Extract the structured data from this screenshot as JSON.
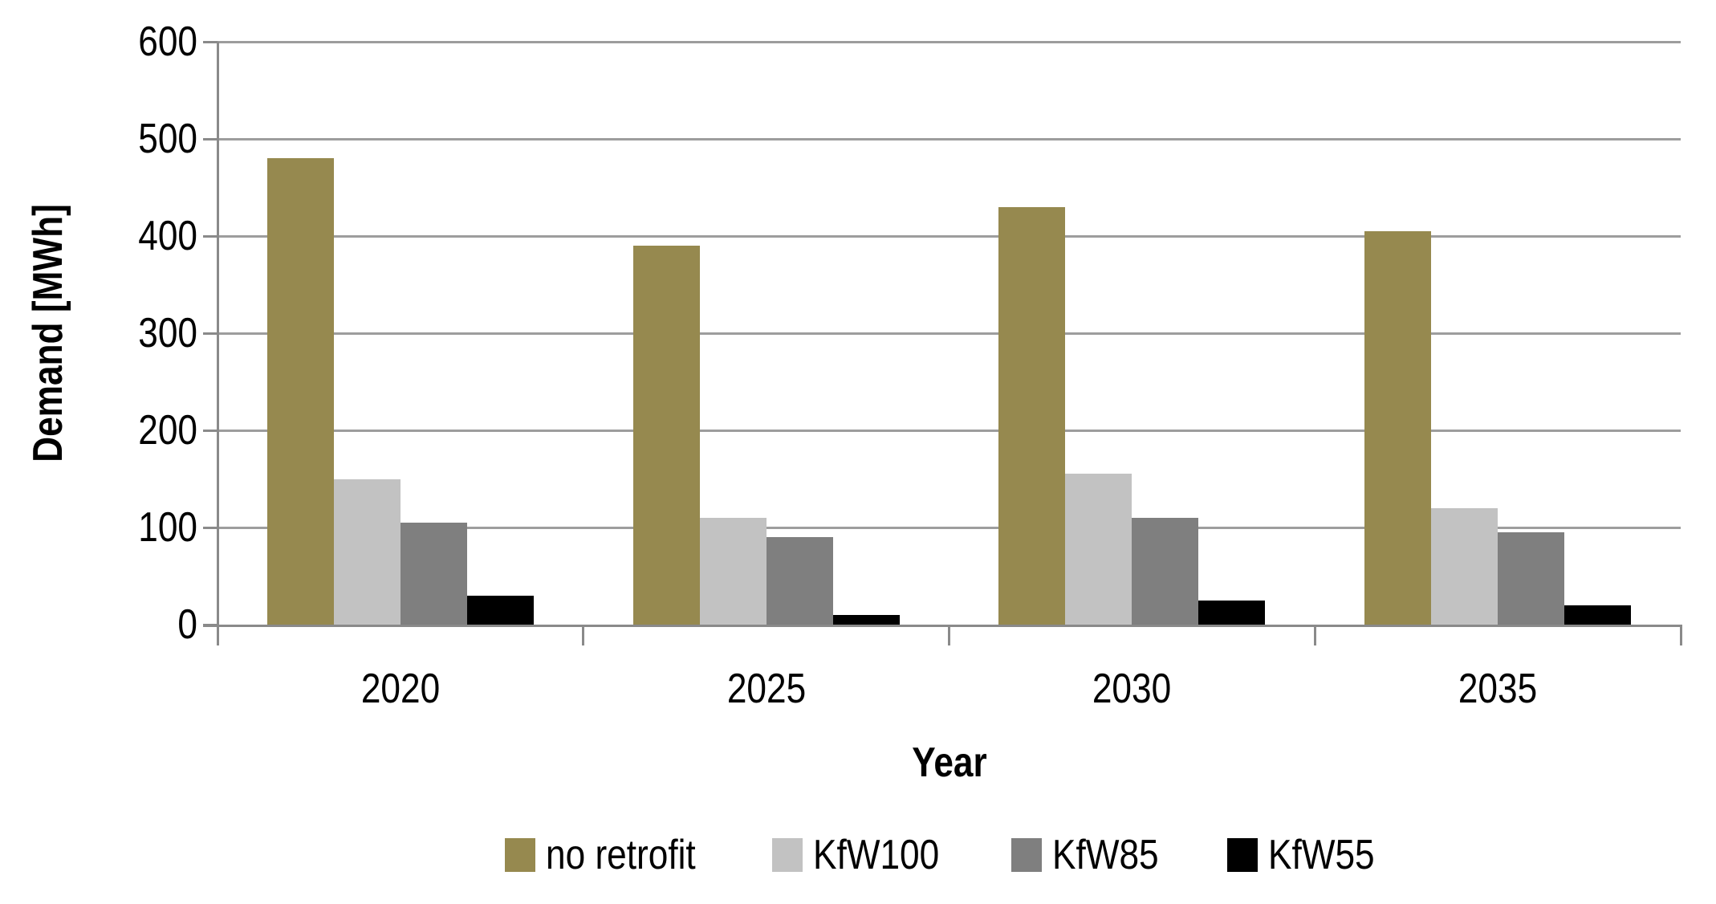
{
  "chart_data": {
    "type": "bar",
    "title": "",
    "categories": [
      "2020",
      "2025",
      "2030",
      "2035"
    ],
    "series": [
      {
        "name": "no retrofit",
        "color": "#96894F",
        "values": [
          480,
          390,
          430,
          405
        ]
      },
      {
        "name": "KfW100",
        "color": "#C2C2C2",
        "values": [
          150,
          110,
          155,
          120
        ]
      },
      {
        "name": "KfW85",
        "color": "#7F7F7F",
        "values": [
          105,
          90,
          110,
          95
        ]
      },
      {
        "name": "KfW55",
        "color": "#000000",
        "values": [
          30,
          10,
          25,
          20
        ]
      }
    ],
    "xlabel": "Year",
    "ylabel": "Demand [MWh]",
    "ylim": [
      0,
      600
    ],
    "yticks": [
      0,
      100,
      200,
      300,
      400,
      500,
      600
    ],
    "grid": true,
    "legend_position": "bottom"
  },
  "colors": {
    "gridline": "#9D9D9D",
    "axis": "#8A8A8A",
    "background": "#FFFFFF",
    "text": "#000000"
  }
}
